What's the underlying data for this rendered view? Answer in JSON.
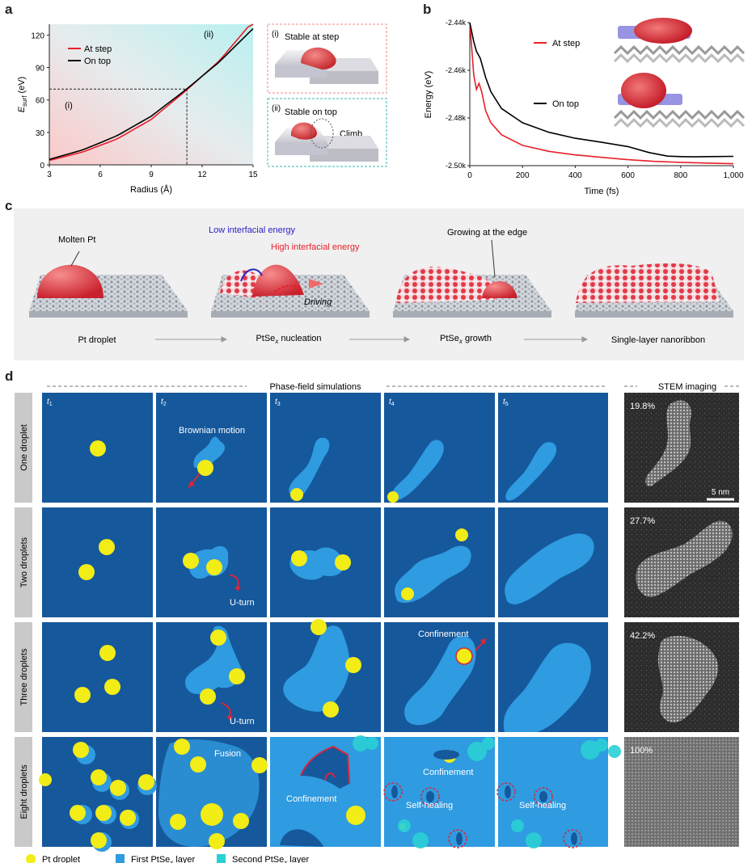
{
  "panel_labels": {
    "a": "a",
    "b": "b",
    "c": "c",
    "d": "d"
  },
  "colors": {
    "step": "#e8202a",
    "top": "#000000",
    "bg": "#16589c",
    "ptseA": "#2f9be0",
    "ptseB": "#2ad0d6",
    "pt": "#f2ec17",
    "arrow": "#d8263a",
    "cyan_bg": "#c7eef0",
    "pink_bg": "#fbd6d6"
  },
  "panel_a": {
    "chart_data": {
      "type": "line",
      "xlabel": "Radius (Å)",
      "ylabel_main": "E",
      "ylabel_sub": "surf",
      "ylabel_unit": " (eV)",
      "xlim": [
        3,
        15
      ],
      "ylim": [
        0,
        130
      ],
      "xticks": [
        "3",
        "6",
        "9",
        "12",
        "15"
      ],
      "yticks": [
        "0",
        "30",
        "60",
        "90",
        "120"
      ],
      "region_i": "(i)",
      "region_ii": "(ii)",
      "crossing": {
        "x": 11.1,
        "y": 70
      },
      "series": [
        {
          "name": "At step",
          "x": [
            3,
            5,
            7,
            9,
            11,
            13,
            15
          ],
          "y": [
            4,
            12,
            24,
            42,
            68,
            96,
            133
          ]
        },
        {
          "name": "On top",
          "x": [
            3,
            5,
            7,
            9,
            11,
            13,
            15
          ],
          "y": [
            5,
            14,
            27,
            45,
            69,
            95,
            126
          ]
        }
      ]
    },
    "inset_i": {
      "label": "(i)",
      "text": "Stable at step"
    },
    "inset_ii": {
      "label": "(ii)",
      "text": "Stable on top",
      "climb": "Climb"
    }
  },
  "panel_b": {
    "chart_data": {
      "type": "line",
      "xlabel": "Time (fs)",
      "ylabel": "Energy (eV)",
      "xlim": [
        0,
        1000
      ],
      "ylim": [
        -2.5,
        -2.44
      ],
      "xticks": [
        "0",
        "200",
        "400",
        "600",
        "800",
        "1,000"
      ],
      "yticks": [
        "-2.44k",
        "-2.46k",
        "-2.48k",
        "-2.50k"
      ],
      "series": [
        {
          "name": "At step",
          "x": [
            0,
            15,
            25,
            35,
            45,
            60,
            80,
            120,
            200,
            300,
            400,
            500,
            600,
            700,
            800,
            900,
            1000
          ],
          "y": [
            -2.44,
            -2.462,
            -2.468,
            -2.4655,
            -2.469,
            -2.477,
            -2.482,
            -2.487,
            -2.4915,
            -2.494,
            -2.4955,
            -2.4965,
            -2.4975,
            -2.4982,
            -2.4986,
            -2.4989,
            -2.4992
          ]
        },
        {
          "name": "On top",
          "x": [
            0,
            15,
            25,
            40,
            60,
            80,
            120,
            200,
            300,
            400,
            500,
            600,
            680,
            750,
            800,
            850,
            900,
            1000
          ],
          "y": [
            -2.44,
            -2.448,
            -2.452,
            -2.455,
            -2.463,
            -2.469,
            -2.476,
            -2.482,
            -2.486,
            -2.4885,
            -2.4902,
            -2.492,
            -2.4945,
            -2.496,
            -2.4962,
            -2.4963,
            -2.4962,
            -2.4961
          ]
        }
      ]
    }
  },
  "panel_c": {
    "molten": "Molten Pt",
    "low": "Low interfacial energy",
    "high": "High interfacial energy",
    "driving": "Driving",
    "growing": "Growing at the edge",
    "steps": [
      {
        "pre": "Pt droplet",
        "sub": "",
        "post": ""
      },
      {
        "pre": "PtSe",
        "sub": "x",
        "post": " nucleation"
      },
      {
        "pre": "PtSe",
        "sub": "x",
        "post": " growth"
      },
      {
        "pre": "Single-layer nanoribbon",
        "sub": "",
        "post": ""
      }
    ]
  },
  "panel_d": {
    "phase_title": "Phase-field simulations",
    "stem_title": "STEM imaging",
    "times": [
      "1",
      "2",
      "3",
      "4",
      "5"
    ],
    "rows": [
      "One droplet",
      "Two droplets",
      "Three droplets",
      "Eight droplets"
    ],
    "stem_pct": [
      "19.8%",
      "27.7%",
      "42.2%",
      "100%"
    ],
    "scale": "5 nm",
    "ann": {
      "brownian": "Brownian motion",
      "uturn": "U-turn",
      "confinement": "Confinement",
      "fusion": "Fusion",
      "selfheal": "Self-healing"
    },
    "legend": [
      {
        "pre": "Pt droplet",
        "sub": "",
        "post": ""
      },
      {
        "pre": "First PtSe",
        "sub": "x",
        "post": " layer"
      },
      {
        "pre": "Second PtSe",
        "sub": "x",
        "post": " layer"
      }
    ]
  }
}
